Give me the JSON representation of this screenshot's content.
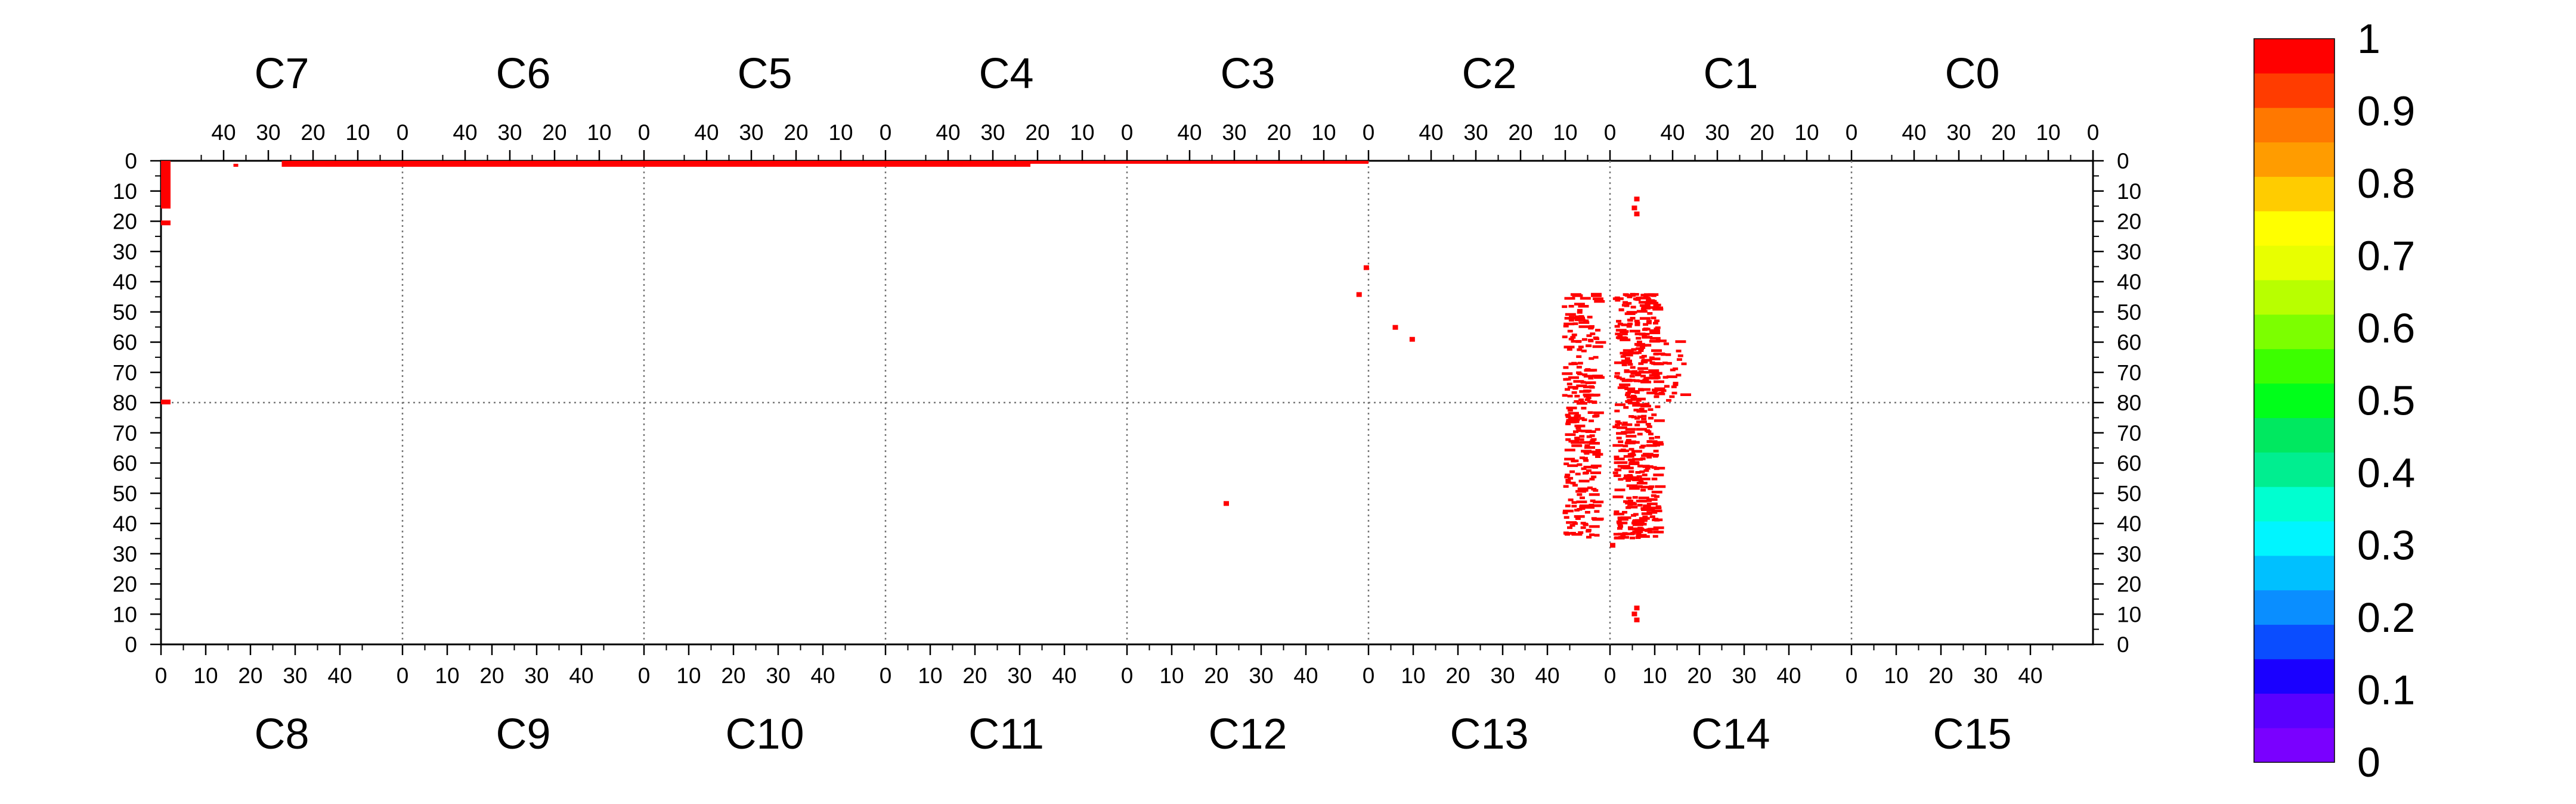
{
  "chart_data": {
    "type": "heatmap",
    "title": "",
    "xlabel": "",
    "ylabel": "",
    "grid": true,
    "top_chambers": [
      "C7",
      "C6",
      "C5",
      "C4",
      "C3",
      "C2",
      "C1",
      "C0"
    ],
    "bottom_chambers": [
      "C8",
      "C9",
      "C10",
      "C11",
      "C12",
      "C13",
      "C14",
      "C15"
    ],
    "top_ticks": [
      "40",
      "30",
      "20",
      "10",
      "0"
    ],
    "bottom_ticks": [
      "0",
      "10",
      "20",
      "30",
      "40"
    ],
    "y_ticks_top_half": [
      "0",
      "10",
      "20",
      "30",
      "40",
      "50",
      "60",
      "70"
    ],
    "y_ticks_mid": "80",
    "y_ticks_bottom_half": [
      "70",
      "60",
      "50",
      "40",
      "30",
      "20",
      "10",
      "0"
    ],
    "strip_range": [
      0,
      50
    ],
    "colorbar": {
      "min": 0,
      "max": 1,
      "labels": [
        "1",
        "0.9",
        "0.8",
        "0.7",
        "0.6",
        "0.5",
        "0.4",
        "0.3",
        "0.2",
        "0.1",
        "0"
      ],
      "colors": [
        "#7a00ff",
        "#5a00ff",
        "#1a00ff",
        "#0a4dff",
        "#0a8eff",
        "#00c0ff",
        "#00f5ff",
        "#00ffd0",
        "#00ee90",
        "#00e860",
        "#00ff1a",
        "#3cff00",
        "#7cff00",
        "#b8ff00",
        "#e8ff00",
        "#ffff00",
        "#ffcc00",
        "#ff9c00",
        "#ff7800",
        "#ff3c00",
        "#ff0000"
      ]
    },
    "hits": {
      "value": 1,
      "color": "#ff0000",
      "top_band": [
        {
          "row": 0,
          "u_start": 0.5,
          "u_end": 5.0,
          "cols": 1
        },
        {
          "row": 1,
          "u_start": 0.5,
          "u_end": 3.6,
          "cols": 1
        }
      ],
      "vertical_column": {
        "u": 0.0,
        "v_start": 0,
        "v_end": 16
      },
      "isolated": [
        {
          "u": 0.0,
          "v": 20
        },
        {
          "u": 0.0,
          "v": 80
        },
        {
          "u": 4.95,
          "v": 44
        },
        {
          "u": 4.98,
          "v": 35
        },
        {
          "u": 5.1,
          "v": 55
        },
        {
          "u": 5.17,
          "v": 59
        },
        {
          "u": 4.4,
          "v": 114
        },
        {
          "u": 6.1,
          "v": 12
        },
        {
          "u": 6.09,
          "v": 15
        },
        {
          "u": 6.1,
          "v": 17
        },
        {
          "u": 6.0,
          "v": 128
        },
        {
          "u": 6.1,
          "v": 149
        },
        {
          "u": 6.09,
          "v": 151
        },
        {
          "u": 6.1,
          "v": 153
        }
      ],
      "clusters": [
        {
          "u_center": 5.87,
          "u_spread": 0.07,
          "v_from": 44,
          "v_to": 126,
          "count": 260
        },
        {
          "u_center": 6.1,
          "u_spread": 0.09,
          "v_from": 44,
          "v_to": 126,
          "count": 430
        },
        {
          "u_center": 6.25,
          "u_spread": 0.05,
          "v_from": 60,
          "v_to": 80,
          "count": 25
        }
      ]
    }
  }
}
